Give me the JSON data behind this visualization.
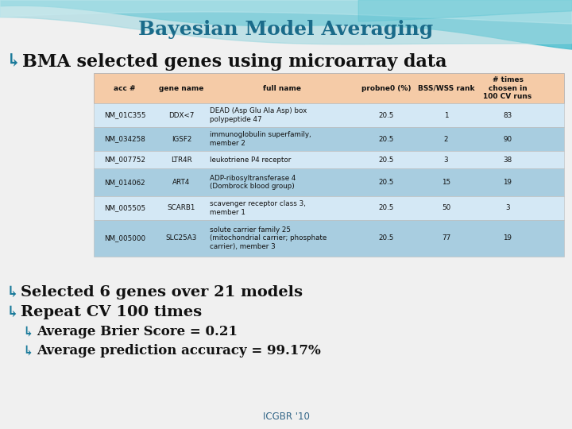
{
  "title": "Bayesian Model Averaging",
  "title_color": "#1a6b8a",
  "subtitle_text": "BMA selected genes using microarray data",
  "table_header": [
    "acc #",
    "gene name",
    "full name",
    "probne0 (%)",
    "BSS/WSS rank",
    "# times\nchosen in\n100 CV runs"
  ],
  "table_rows": [
    [
      "NM_01C355",
      "DDX<7",
      "DEAD (Asp Glu Ala Asp) box\npolypeptide 47",
      "20.5",
      "1",
      "83"
    ],
    [
      "NM_034258",
      "IGSF2",
      "immunoglobulin superfamily,\nmember 2",
      "20.5",
      "2",
      "90"
    ],
    [
      "NM_007752",
      "LTR4R",
      "leukotriene P4 receptor",
      "20.5",
      "3",
      "38"
    ],
    [
      "NM_014062",
      "ART4",
      "ADP-ribosyltransferase 4\n(Dombrock blood group)",
      "20.5",
      "15",
      "19"
    ],
    [
      "NM_005505",
      "SCARB1",
      "scavenger receptor class 3,\nmember 1",
      "20.5",
      "50",
      "3"
    ],
    [
      "NM_005000",
      "SLC25A3",
      "solute carrier family 25\n(mitochondrial carrier; phosphate\ncarrier), member 3",
      "20.5",
      "77",
      "19"
    ]
  ],
  "header_bg": "#f5cba7",
  "row_bg_light": "#d4e8f5",
  "row_bg_dark": "#a8cde0",
  "bullets": [
    [
      "Selected 6 genes over 21 models",
      18,
      14
    ],
    [
      "Repeat CV 100 times",
      18,
      14
    ],
    [
      "Average Brier Score = 0.21",
      38,
      12
    ],
    [
      "Average prediction accuracy = 99.17%",
      38,
      12
    ]
  ],
  "footer": "ICGBR '10",
  "bg_color": "#f0f0f0",
  "wave_teal": "#4dbfcf",
  "wave_light": "#a0d8e0",
  "wave_lightest": "#c8ecf0"
}
